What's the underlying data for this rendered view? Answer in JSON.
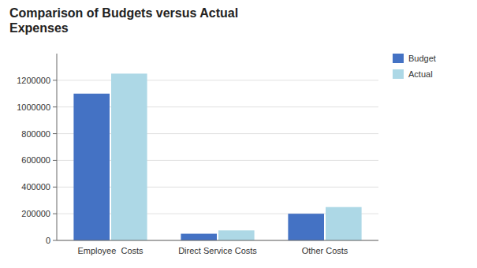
{
  "chart_data": {
    "type": "bar",
    "title": "Comparison of Budgets versus Actual\nExpenses",
    "categories": [
      "Employee  Costs",
      "Direct Service Costs",
      "Other Costs"
    ],
    "series": [
      {
        "name": "Budget",
        "color": "#4472C4",
        "values": [
          1100000,
          50000,
          200000
        ]
      },
      {
        "name": "Actual",
        "color": "#ADD8E6",
        "values": [
          1250000,
          75000,
          250000
        ]
      }
    ],
    "ylim": [
      0,
      1400000
    ],
    "yticks": [
      0,
      200000,
      400000,
      600000,
      800000,
      1000000,
      1200000
    ],
    "grid": true,
    "legend": "right"
  }
}
